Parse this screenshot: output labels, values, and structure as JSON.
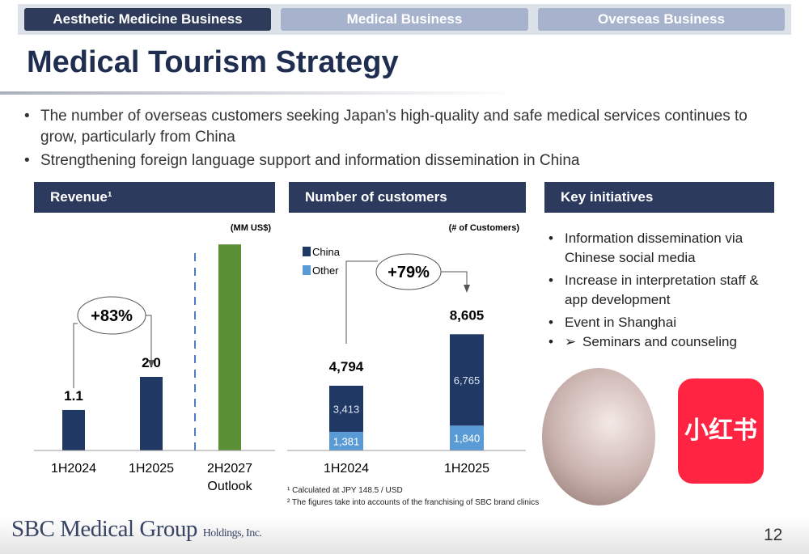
{
  "tabs": [
    "Aesthetic Medicine Business",
    "Medical Business",
    "Overseas Business"
  ],
  "title": "Medical Tourism Strategy",
  "bullets": [
    "The number of overseas customers seeking Japan's high-quality and safe medical services continues to grow, particularly from China",
    "Strengthening foreign language support and information dissemination in China"
  ],
  "revenue": {
    "header": "Revenue¹",
    "chart_data": {
      "type": "bar",
      "unit": "(MM US$)",
      "categories": [
        "1H2024",
        "1H2025",
        "2H2027 Outlook"
      ],
      "values": [
        1.1,
        2.0,
        5.6
      ],
      "value_labels": [
        "1.1",
        "2.0",
        null
      ],
      "colors": [
        "#1f3864",
        "#1f3864",
        "#5b8f35"
      ],
      "annotation": "+83%"
    }
  },
  "customers": {
    "header": "Number of customers",
    "chart_data": {
      "type": "stacked_bar",
      "unit": "(# of Customers)",
      "categories": [
        "1H2024",
        "1H2025"
      ],
      "series": [
        {
          "name": "Other",
          "color": "#5b9bd5",
          "values": [
            1381,
            1840
          ],
          "value_labels": [
            "1,381",
            "1,840"
          ]
        },
        {
          "name": "China",
          "color": "#1f3864",
          "values": [
            3413,
            6765
          ],
          "value_labels": [
            "3,413",
            "6,765"
          ]
        }
      ],
      "total_labels": [
        "4,794",
        "8,605"
      ],
      "annotation": "+79%"
    }
  },
  "initiatives": {
    "header": "Key initiatives",
    "items": [
      "Information dissemination via Chinese social media",
      "Increase in interpretation staff   & app development",
      "Event in Shanghai"
    ],
    "sub_item": "Seminars and counseling"
  },
  "logo": "小红书",
  "footnotes": [
    "¹ Calculated at JPY 148.5 / USD",
    "² The figures take into accounts of the franchising of SBC brand clinics"
  ],
  "footer": {
    "company": "SBC Medical Group",
    "suffix": "Holdings, Inc.",
    "page": "12"
  }
}
